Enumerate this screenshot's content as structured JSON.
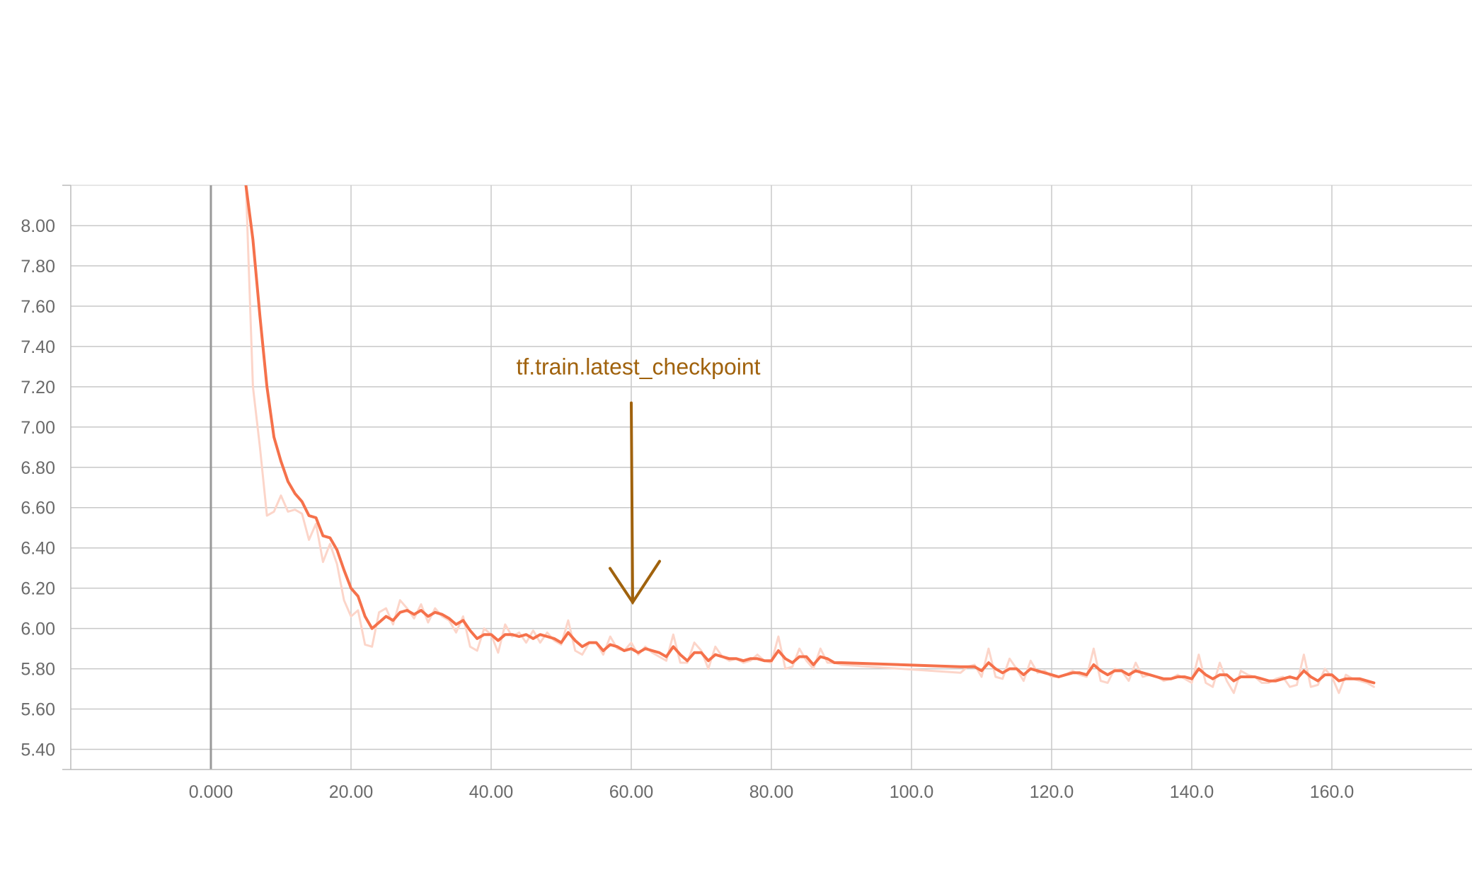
{
  "chart_data": {
    "type": "line",
    "title": "",
    "xlabel": "",
    "ylabel": "",
    "xlim": [
      -20,
      180
    ],
    "ylim": [
      5.3,
      8.2
    ],
    "x_ticks": [
      0,
      20,
      40,
      60,
      80,
      100,
      120,
      140,
      160
    ],
    "x_tick_labels": [
      "0.000",
      "20.00",
      "40.00",
      "60.00",
      "80.00",
      "100.0",
      "120.0",
      "140.0",
      "160.0"
    ],
    "y_ticks": [
      5.4,
      5.6,
      5.8,
      6.0,
      6.2,
      6.4,
      6.6,
      6.8,
      7.0,
      7.2,
      7.4,
      7.6,
      7.8,
      8.0
    ],
    "y_tick_labels": [
      "5.40",
      "5.60",
      "5.80",
      "6.00",
      "6.20",
      "6.40",
      "6.60",
      "6.80",
      "7.00",
      "7.20",
      "7.40",
      "7.60",
      "7.80",
      "8.00"
    ],
    "grid": true,
    "legend": "none",
    "series": [
      {
        "style": "raw",
        "color": "#fcd5c9",
        "x": [
          5,
          6,
          7,
          8,
          9,
          10,
          11,
          12,
          13,
          14,
          15,
          16,
          17,
          18,
          19,
          20,
          21,
          22,
          23,
          24,
          25,
          26,
          27,
          28,
          29,
          30,
          31,
          32,
          33,
          34,
          35,
          36,
          37,
          38,
          39,
          40,
          41,
          42,
          43,
          44,
          45,
          46,
          47,
          48,
          49,
          50,
          51,
          52,
          53,
          54,
          55,
          56,
          57,
          58,
          59,
          60,
          61,
          62,
          63,
          64,
          65,
          66,
          67,
          68,
          69,
          70,
          71,
          72,
          73,
          74,
          75,
          76,
          77,
          78,
          79,
          80,
          81,
          82,
          83,
          84,
          85,
          86,
          87,
          88,
          89,
          90,
          107,
          108,
          109,
          110,
          111,
          112,
          113,
          114,
          115,
          116,
          117,
          118,
          119,
          120,
          121,
          122,
          123,
          124,
          125,
          126,
          127,
          128,
          129,
          130,
          131,
          132,
          133,
          134,
          135,
          136,
          137,
          138,
          139,
          140,
          141,
          142,
          143,
          144,
          145,
          146,
          147,
          148,
          149,
          150,
          151,
          152,
          153,
          154,
          155,
          156,
          157,
          158,
          159,
          160,
          161,
          162,
          163,
          164,
          165,
          166
        ],
        "y": [
          8.2,
          7.2,
          6.9,
          6.56,
          6.58,
          6.66,
          6.58,
          6.59,
          6.57,
          6.44,
          6.52,
          6.33,
          6.42,
          6.32,
          6.14,
          6.06,
          6.09,
          5.92,
          5.91,
          6.08,
          6.1,
          6.02,
          6.14,
          6.1,
          6.05,
          6.12,
          6.03,
          6.1,
          6.06,
          6.04,
          5.98,
          6.06,
          5.91,
          5.89,
          6.0,
          5.97,
          5.88,
          6.02,
          5.96,
          5.98,
          5.93,
          5.99,
          5.93,
          5.98,
          5.94,
          5.92,
          6.04,
          5.89,
          5.87,
          5.93,
          5.93,
          5.87,
          5.96,
          5.9,
          5.89,
          5.93,
          5.87,
          5.91,
          5.88,
          5.86,
          5.84,
          5.97,
          5.83,
          5.83,
          5.93,
          5.89,
          5.8,
          5.91,
          5.86,
          5.84,
          5.85,
          5.83,
          5.84,
          5.87,
          5.84,
          5.83,
          5.96,
          5.8,
          5.81,
          5.9,
          5.84,
          5.8,
          5.9,
          5.83,
          5.83,
          5.82,
          5.78,
          5.81,
          5.82,
          5.76,
          5.9,
          5.76,
          5.75,
          5.85,
          5.8,
          5.74,
          5.84,
          5.78,
          5.79,
          5.76,
          5.76,
          5.77,
          5.79,
          5.77,
          5.76,
          5.9,
          5.74,
          5.73,
          5.8,
          5.79,
          5.74,
          5.83,
          5.76,
          5.77,
          5.76,
          5.74,
          5.75,
          5.77,
          5.75,
          5.73,
          5.87,
          5.73,
          5.71,
          5.83,
          5.74,
          5.68,
          5.79,
          5.77,
          5.76,
          5.73,
          5.73,
          5.75,
          5.76,
          5.71,
          5.72,
          5.87,
          5.71,
          5.72,
          5.8,
          5.76,
          5.68,
          5.77,
          5.75,
          5.74,
          5.73,
          5.71
        ]
      },
      {
        "style": "smoothed",
        "color": "#f5714b",
        "x": [
          5,
          6,
          7,
          8,
          9,
          10,
          11,
          12,
          13,
          14,
          15,
          16,
          17,
          18,
          19,
          20,
          21,
          22,
          23,
          24,
          25,
          26,
          27,
          28,
          29,
          30,
          31,
          32,
          33,
          34,
          35,
          36,
          37,
          38,
          39,
          40,
          41,
          42,
          43,
          44,
          45,
          46,
          47,
          48,
          49,
          50,
          51,
          52,
          53,
          54,
          55,
          56,
          57,
          58,
          59,
          60,
          61,
          62,
          63,
          64,
          65,
          66,
          67,
          68,
          69,
          70,
          71,
          72,
          73,
          74,
          75,
          76,
          77,
          78,
          79,
          80,
          81,
          82,
          83,
          84,
          85,
          86,
          87,
          88,
          89,
          90,
          107,
          108,
          109,
          110,
          111,
          112,
          113,
          114,
          115,
          116,
          117,
          118,
          119,
          120,
          121,
          122,
          123,
          124,
          125,
          126,
          127,
          128,
          129,
          130,
          131,
          132,
          133,
          134,
          135,
          136,
          137,
          138,
          139,
          140,
          141,
          142,
          143,
          144,
          145,
          146,
          147,
          148,
          149,
          150,
          151,
          152,
          153,
          154,
          155,
          156,
          157,
          158,
          159,
          160,
          161,
          162,
          163,
          164,
          165,
          166
        ],
        "y": [
          8.2,
          7.93,
          7.55,
          7.2,
          6.95,
          6.83,
          6.73,
          6.67,
          6.63,
          6.56,
          6.55,
          6.46,
          6.45,
          6.39,
          6.29,
          6.2,
          6.16,
          6.06,
          6.0,
          6.03,
          6.06,
          6.04,
          6.08,
          6.09,
          6.07,
          6.09,
          6.06,
          6.08,
          6.07,
          6.05,
          6.02,
          6.04,
          5.99,
          5.95,
          5.97,
          5.97,
          5.94,
          5.97,
          5.97,
          5.96,
          5.97,
          5.95,
          5.97,
          5.96,
          5.95,
          5.93,
          5.98,
          5.94,
          5.91,
          5.93,
          5.93,
          5.89,
          5.92,
          5.91,
          5.89,
          5.9,
          5.88,
          5.9,
          5.89,
          5.88,
          5.86,
          5.91,
          5.87,
          5.84,
          5.88,
          5.88,
          5.84,
          5.87,
          5.86,
          5.85,
          5.85,
          5.84,
          5.85,
          5.85,
          5.84,
          5.84,
          5.89,
          5.85,
          5.83,
          5.86,
          5.86,
          5.82,
          5.86,
          5.85,
          5.83,
          5.83,
          5.81,
          5.81,
          5.81,
          5.79,
          5.83,
          5.8,
          5.78,
          5.8,
          5.8,
          5.77,
          5.8,
          5.79,
          5.78,
          5.77,
          5.76,
          5.77,
          5.78,
          5.78,
          5.77,
          5.82,
          5.79,
          5.77,
          5.79,
          5.79,
          5.77,
          5.79,
          5.78,
          5.77,
          5.76,
          5.75,
          5.75,
          5.76,
          5.76,
          5.75,
          5.8,
          5.77,
          5.75,
          5.77,
          5.77,
          5.74,
          5.76,
          5.76,
          5.76,
          5.75,
          5.74,
          5.74,
          5.75,
          5.76,
          5.75,
          5.79,
          5.76,
          5.74,
          5.77,
          5.77,
          5.74,
          5.75,
          5.75,
          5.75,
          5.74,
          5.73
        ]
      }
    ],
    "annotations": [
      {
        "text": "tf.train.latest_checkpoint",
        "color": "#a0620d",
        "arrow_x": 60,
        "arrow_from_y": 7.12,
        "arrow_to_y": 6.13
      }
    ]
  }
}
